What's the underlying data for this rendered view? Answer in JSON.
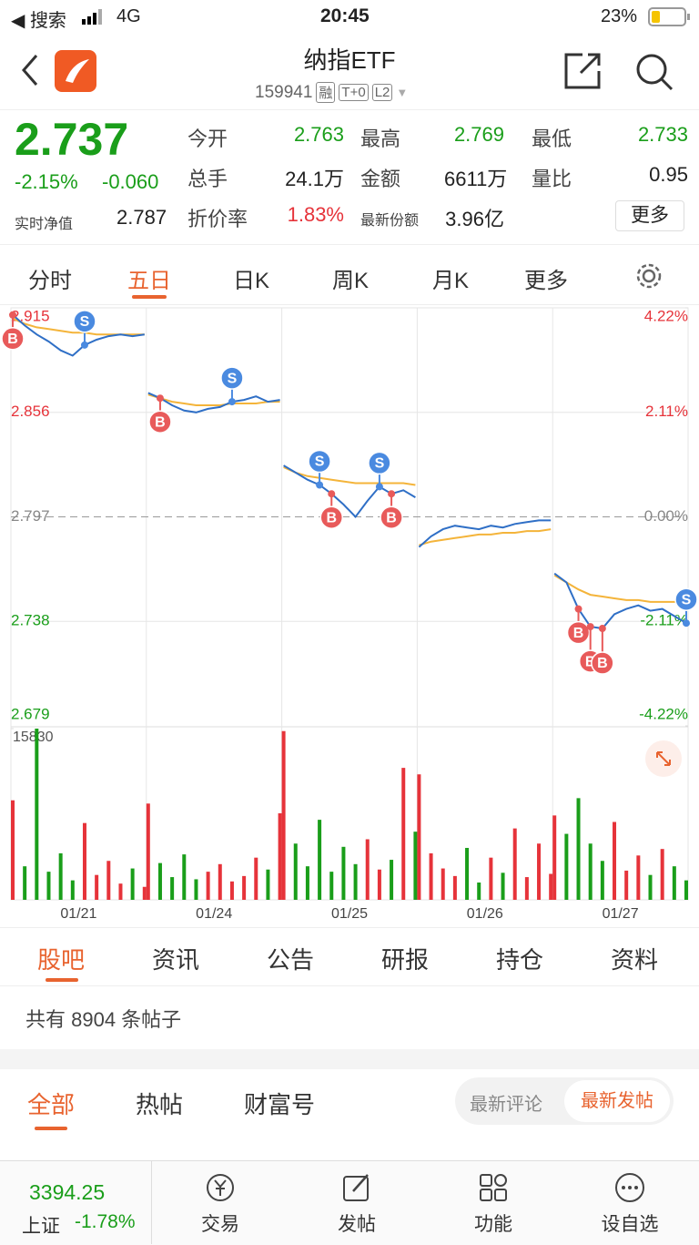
{
  "status_bar": {
    "back": "◀ 搜索",
    "network": "4G",
    "time": "20:45",
    "battery": "23%"
  },
  "header": {
    "title": "纳指ETF",
    "code": "159941",
    "tags": [
      "融",
      "T+0",
      "L2"
    ]
  },
  "quote": {
    "price": "2.737",
    "change_pct": "-2.15%",
    "change": "-0.060",
    "nav_label": "实时净值",
    "nav": "2.787",
    "fields": [
      [
        "今开",
        "2.763"
      ],
      [
        "最高",
        "2.769"
      ],
      [
        "最低",
        "2.733"
      ],
      [
        "总手",
        "24.1万"
      ],
      [
        "金额",
        "6611万"
      ],
      [
        "量比",
        "0.95"
      ],
      [
        "折价率",
        "1.83%"
      ],
      [
        "最新份额",
        "3.96亿"
      ]
    ],
    "more": "更多"
  },
  "tabs": [
    "分时",
    "五日",
    "日K",
    "周K",
    "月K",
    "更多"
  ],
  "chart_data": {
    "type": "line",
    "price_color": "#2f6fc6",
    "average_color": "#f4b43a",
    "up_color": "#e6333a",
    "down_color": "#1a9e1a",
    "ylim": [
      2.679,
      2.915
    ],
    "yticks": [
      2.915,
      2.856,
      2.797,
      2.738,
      2.679
    ],
    "y2lim": [
      -4.22,
      4.22
    ],
    "y2ticks": [
      {
        "value": 4.22,
        "label": "4.22%"
      },
      {
        "value": 2.11,
        "label": "2.11%"
      },
      {
        "value": 0,
        "label": "0.00%"
      },
      {
        "value": -2.11,
        "label": "-2.11%"
      },
      {
        "value": -4.22,
        "label": "-4.22%"
      }
    ],
    "volume_ylim": [
      0,
      15830
    ],
    "volume_max_label": "15830",
    "days": [
      {
        "date": "01/21",
        "price": [
          2.911,
          2.905,
          2.9,
          2.896,
          2.891,
          2.888,
          2.894,
          2.897,
          2.899,
          2.9,
          2.899,
          2.9
        ],
        "average": [
          2.909,
          2.906,
          2.904,
          2.903,
          2.902,
          2.901,
          2.901,
          2.9,
          2.9,
          2.9,
          2.9,
          2.9
        ],
        "volume": [
          9200,
          3100,
          15830,
          2600,
          4300,
          1800,
          7100,
          2300,
          3600,
          1500,
          2900,
          1200
        ]
      },
      {
        "date": "01/24",
        "price": [
          2.867,
          2.864,
          2.86,
          2.857,
          2.856,
          2.858,
          2.859,
          2.862,
          2.863,
          2.865,
          2.862,
          2.863
        ],
        "average": [
          2.866,
          2.864,
          2.862,
          2.861,
          2.86,
          2.86,
          2.86,
          2.861,
          2.861,
          2.861,
          2.862,
          2.862
        ],
        "volume": [
          8900,
          3400,
          2100,
          4200,
          1900,
          2600,
          3300,
          1700,
          2200,
          3900,
          2800,
          8000
        ]
      },
      {
        "date": "01/25",
        "price": [
          2.826,
          2.822,
          2.818,
          2.815,
          2.81,
          2.804,
          2.797,
          2.806,
          2.814,
          2.81,
          2.812,
          2.808
        ],
        "average": [
          2.825,
          2.822,
          2.82,
          2.819,
          2.818,
          2.817,
          2.816,
          2.816,
          2.816,
          2.816,
          2.816,
          2.815
        ],
        "volume": [
          15600,
          5200,
          3100,
          7400,
          2600,
          4900,
          3300,
          5600,
          2800,
          3700,
          12200,
          6300
        ]
      },
      {
        "date": "01/26",
        "price": [
          2.78,
          2.786,
          2.79,
          2.792,
          2.791,
          2.79,
          2.792,
          2.791,
          2.793,
          2.794,
          2.795,
          2.795
        ],
        "average": [
          2.781,
          2.783,
          2.784,
          2.785,
          2.786,
          2.787,
          2.787,
          2.788,
          2.788,
          2.789,
          2.789,
          2.79
        ],
        "volume": [
          11600,
          4300,
          2900,
          2200,
          4800,
          1600,
          3900,
          2500,
          6600,
          2100,
          5200,
          2400
        ]
      },
      {
        "date": "01/27",
        "price": [
          2.765,
          2.76,
          2.745,
          2.735,
          2.734,
          2.742,
          2.745,
          2.747,
          2.744,
          2.745,
          2.741,
          2.737
        ],
        "average": [
          2.764,
          2.76,
          2.756,
          2.753,
          2.752,
          2.751,
          2.75,
          2.75,
          2.749,
          2.749,
          2.749,
          2.749
        ],
        "volume": [
          7800,
          6100,
          9400,
          5200,
          3600,
          7200,
          2700,
          4100,
          2300,
          4700,
          3100,
          1800
        ]
      }
    ],
    "trades": [
      {
        "day": 0,
        "index": 0,
        "side": "B"
      },
      {
        "day": 0,
        "index": 6,
        "side": "S"
      },
      {
        "day": 1,
        "index": 1,
        "side": "B"
      },
      {
        "day": 1,
        "index": 7,
        "side": "S"
      },
      {
        "day": 2,
        "index": 3,
        "side": "S"
      },
      {
        "day": 2,
        "index": 4,
        "side": "B"
      },
      {
        "day": 2,
        "index": 8,
        "side": "S"
      },
      {
        "day": 2,
        "index": 9,
        "side": "B"
      },
      {
        "day": 4,
        "index": 2,
        "side": "B"
      },
      {
        "day": 4,
        "index": 3,
        "side": "B"
      },
      {
        "day": 4,
        "index": 4,
        "side": "B"
      },
      {
        "day": 4,
        "index": 11,
        "side": "S"
      }
    ]
  },
  "news_tabs": [
    "股吧",
    "资讯",
    "公告",
    "研报",
    "持仓",
    "资料"
  ],
  "post_count": "共有 8904 条帖子",
  "post_tabs": [
    "全部",
    "热帖",
    "财富号"
  ],
  "sort_toggle": [
    "最新评论",
    "最新发帖"
  ],
  "bottom_bar": {
    "index_value": "3394.25",
    "index_name": "上证",
    "index_change": "-1.78%",
    "items": [
      "交易",
      "发帖",
      "功能",
      "设自选"
    ]
  }
}
